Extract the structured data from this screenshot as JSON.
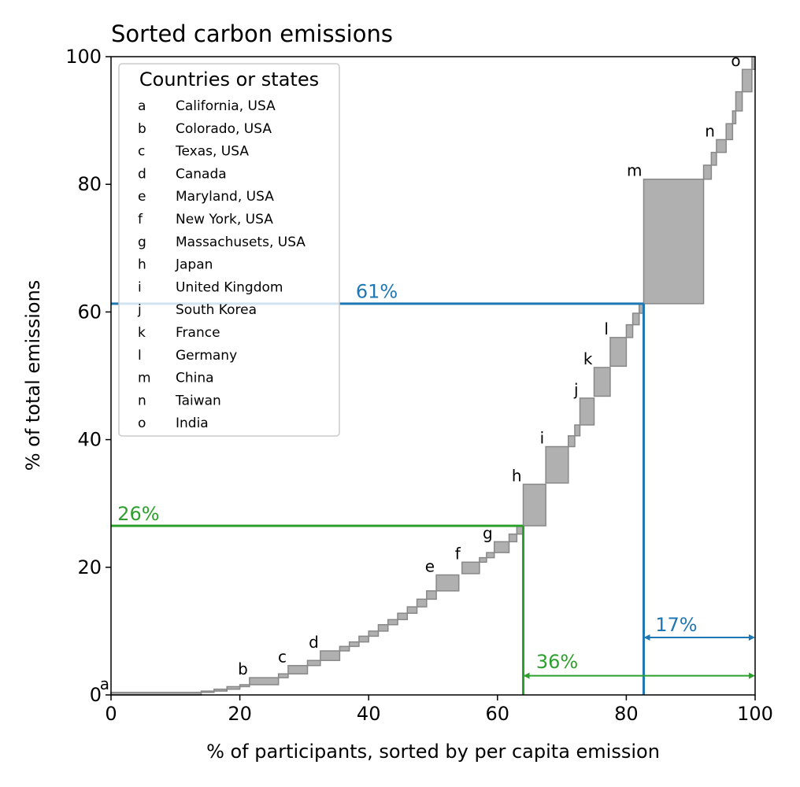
{
  "chart_data": {
    "type": "area",
    "title": "Sorted carbon emissions",
    "xlabel": "% of participants, sorted by per capita emission",
    "ylabel": "% of total emissions",
    "xlim": [
      0,
      100
    ],
    "ylim": [
      0,
      100
    ],
    "xticks": [
      "0",
      "20",
      "40",
      "60",
      "80",
      "100"
    ],
    "yticks": [
      "0",
      "20",
      "40",
      "60",
      "80",
      "100"
    ],
    "grid": false,
    "colors": {
      "box_fill": "#b0b0b0",
      "box_stroke": "#888888",
      "blue": "#1f77b4",
      "green": "#2ca02c"
    },
    "legend": {
      "title": "Countries or states",
      "placement": "top-left",
      "entries": [
        {
          "key": "a",
          "name": "California, USA"
        },
        {
          "key": "b",
          "name": "Colorado, USA"
        },
        {
          "key": "c",
          "name": "Texas, USA"
        },
        {
          "key": "d",
          "name": "Canada"
        },
        {
          "key": "e",
          "name": "Maryland, USA"
        },
        {
          "key": "f",
          "name": "New York, USA"
        },
        {
          "key": "g",
          "name": "Massachusets, USA"
        },
        {
          "key": "h",
          "name": "Japan"
        },
        {
          "key": "i",
          "name": "United Kingdom"
        },
        {
          "key": "j",
          "name": "South Korea"
        },
        {
          "key": "k",
          "name": "France"
        },
        {
          "key": "l",
          "name": "Germany"
        },
        {
          "key": "m",
          "name": "China"
        },
        {
          "key": "n",
          "name": "Taiwan"
        },
        {
          "key": "o",
          "name": "India"
        }
      ]
    },
    "labeled_boxes": [
      {
        "key": "a",
        "x0": 0.0,
        "x1": 14.0,
        "y0": 0.0,
        "y1": 0.4
      },
      {
        "key": "b",
        "x0": 21.5,
        "x1": 26.0,
        "y0": 1.6,
        "y1": 2.7
      },
      {
        "key": "c",
        "x0": 27.5,
        "x1": 30.5,
        "y0": 3.3,
        "y1": 4.6
      },
      {
        "key": "d",
        "x0": 32.5,
        "x1": 35.5,
        "y0": 5.4,
        "y1": 6.9
      },
      {
        "key": "e",
        "x0": 50.5,
        "x1": 54.0,
        "y0": 16.3,
        "y1": 18.8
      },
      {
        "key": "f",
        "x0": 54.5,
        "x1": 57.2,
        "y0": 19.0,
        "y1": 20.8
      },
      {
        "key": "g",
        "x0": 59.5,
        "x1": 61.8,
        "y0": 22.3,
        "y1": 24.0
      },
      {
        "key": "h",
        "x0": 64.0,
        "x1": 67.5,
        "y0": 26.5,
        "y1": 33.0
      },
      {
        "key": "i",
        "x0": 67.5,
        "x1": 71.0,
        "y0": 33.2,
        "y1": 38.9
      },
      {
        "key": "j",
        "x0": 72.8,
        "x1": 75.0,
        "y0": 42.3,
        "y1": 46.5
      },
      {
        "key": "k",
        "x0": 75.0,
        "x1": 77.5,
        "y0": 46.8,
        "y1": 51.3
      },
      {
        "key": "l",
        "x0": 77.5,
        "x1": 80.0,
        "y0": 51.5,
        "y1": 56.0
      },
      {
        "key": "m",
        "x0": 82.7,
        "x1": 92.0,
        "y0": 61.3,
        "y1": 80.8
      },
      {
        "key": "n",
        "x0": 94.0,
        "x1": 95.5,
        "y0": 85.0,
        "y1": 87.0
      },
      {
        "key": "o",
        "x0": 98.0,
        "x1": 99.5,
        "y0": 94.5,
        "y1": 98.0
      }
    ],
    "minor_boxes": [
      {
        "x0": 14.0,
        "x1": 16.0,
        "y0": 0.4,
        "y1": 0.6
      },
      {
        "x0": 16.0,
        "x1": 18.0,
        "y0": 0.6,
        "y1": 0.9
      },
      {
        "x0": 18.0,
        "x1": 20.0,
        "y0": 0.9,
        "y1": 1.3
      },
      {
        "x0": 20.0,
        "x1": 21.5,
        "y0": 1.3,
        "y1": 1.6
      },
      {
        "x0": 26.0,
        "x1": 27.5,
        "y0": 2.7,
        "y1": 3.3
      },
      {
        "x0": 30.5,
        "x1": 32.5,
        "y0": 4.6,
        "y1": 5.4
      },
      {
        "x0": 35.5,
        "x1": 37.0,
        "y0": 6.9,
        "y1": 7.6
      },
      {
        "x0": 37.0,
        "x1": 38.5,
        "y0": 7.6,
        "y1": 8.3
      },
      {
        "x0": 38.5,
        "x1": 40.0,
        "y0": 8.3,
        "y1": 9.2
      },
      {
        "x0": 40.0,
        "x1": 41.5,
        "y0": 9.2,
        "y1": 10.0
      },
      {
        "x0": 41.5,
        "x1": 43.0,
        "y0": 10.0,
        "y1": 11.0
      },
      {
        "x0": 43.0,
        "x1": 44.5,
        "y0": 11.0,
        "y1": 11.8
      },
      {
        "x0": 44.5,
        "x1": 46.0,
        "y0": 11.8,
        "y1": 12.8
      },
      {
        "x0": 46.0,
        "x1": 47.5,
        "y0": 12.8,
        "y1": 13.8
      },
      {
        "x0": 47.5,
        "x1": 49.0,
        "y0": 13.8,
        "y1": 15.0
      },
      {
        "x0": 49.0,
        "x1": 50.5,
        "y0": 15.0,
        "y1": 16.3
      },
      {
        "x0": 57.2,
        "x1": 58.3,
        "y0": 20.8,
        "y1": 21.5
      },
      {
        "x0": 58.3,
        "x1": 59.5,
        "y0": 21.5,
        "y1": 22.3
      },
      {
        "x0": 61.8,
        "x1": 63.0,
        "y0": 24.0,
        "y1": 25.2
      },
      {
        "x0": 63.0,
        "x1": 64.0,
        "y0": 25.2,
        "y1": 26.5
      },
      {
        "x0": 71.0,
        "x1": 72.0,
        "y0": 38.9,
        "y1": 40.6
      },
      {
        "x0": 72.0,
        "x1": 72.8,
        "y0": 40.6,
        "y1": 42.3
      },
      {
        "x0": 80.0,
        "x1": 81.0,
        "y0": 56.0,
        "y1": 58.0
      },
      {
        "x0": 81.0,
        "x1": 82.0,
        "y0": 58.0,
        "y1": 59.8
      },
      {
        "x0": 82.0,
        "x1": 82.7,
        "y0": 59.8,
        "y1": 61.3
      },
      {
        "x0": 92.0,
        "x1": 93.2,
        "y0": 80.8,
        "y1": 83.0
      },
      {
        "x0": 93.2,
        "x1": 94.0,
        "y0": 83.0,
        "y1": 85.0
      },
      {
        "x0": 95.5,
        "x1": 96.5,
        "y0": 87.0,
        "y1": 89.5
      },
      {
        "x0": 96.5,
        "x1": 97.0,
        "y0": 89.5,
        "y1": 91.5
      },
      {
        "x0": 97.0,
        "x1": 98.0,
        "y0": 91.5,
        "y1": 94.5
      },
      {
        "x0": 99.5,
        "x1": 100.0,
        "y0": 98.0,
        "y1": 100.0
      }
    ],
    "annotations": {
      "blue_line": {
        "x": 82.7,
        "y": 61.3,
        "label": "61%",
        "label_x": 38.0,
        "label_y": 62.2
      },
      "blue_arrow": {
        "x0": 82.7,
        "x1": 100.0,
        "y": 9.0,
        "label": "17%",
        "label_x": 84.5,
        "label_y": 10.0
      },
      "green_line": {
        "x": 64.0,
        "y": 26.5,
        "label": "26%",
        "label_x": 1.0,
        "label_y": 27.4
      },
      "green_arrow": {
        "x0": 64.0,
        "x1": 100.0,
        "y": 3.0,
        "label": "36%",
        "label_x": 66.0,
        "label_y": 4.2
      }
    }
  }
}
